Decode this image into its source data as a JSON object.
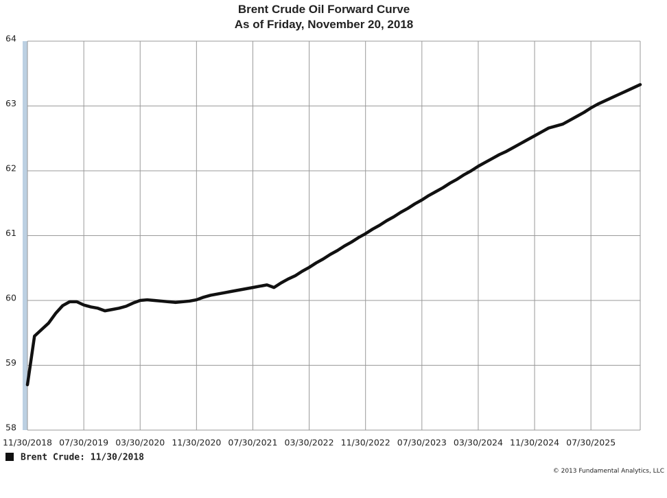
{
  "chart_data": {
    "type": "line",
    "title": "Brent Crude Oil Forward Curve",
    "subtitle": "As of Friday, November 20, 2018",
    "categories": [
      "11/30/2018",
      null,
      null,
      null,
      null,
      null,
      null,
      null,
      "07/30/2019",
      null,
      null,
      null,
      null,
      null,
      null,
      null,
      "03/30/2020",
      null,
      null,
      null,
      null,
      null,
      null,
      null,
      "11/30/2020",
      null,
      null,
      null,
      null,
      null,
      null,
      null,
      "07/30/2021",
      null,
      null,
      null,
      null,
      null,
      null,
      null,
      "03/30/2022",
      null,
      null,
      null,
      null,
      null,
      null,
      null,
      "11/30/2022",
      null,
      null,
      null,
      null,
      null,
      null,
      null,
      "07/30/2023",
      null,
      null,
      null,
      null,
      null,
      null,
      null,
      "03/30/2024",
      null,
      null,
      null,
      null,
      null,
      null,
      null,
      "11/30/2024",
      null,
      null,
      null,
      null,
      null,
      null,
      null,
      "07/30/2025",
      null,
      null,
      null,
      null,
      null,
      null,
      null
    ],
    "series": [
      {
        "name": "Brent Crude: 11/30/2018",
        "color": "#111111",
        "values": [
          58.7,
          59.45,
          59.55,
          59.65,
          59.8,
          59.92,
          59.98,
          59.98,
          59.93,
          59.9,
          59.88,
          59.84,
          59.86,
          59.88,
          59.91,
          59.96,
          60.0,
          60.01,
          60.0,
          59.99,
          59.98,
          59.97,
          59.98,
          59.99,
          60.01,
          60.05,
          60.08,
          60.1,
          60.12,
          60.14,
          60.16,
          60.18,
          60.2,
          60.22,
          60.24,
          60.2,
          60.27,
          60.33,
          60.38,
          60.45,
          60.51,
          60.58,
          60.64,
          60.71,
          60.77,
          60.84,
          60.9,
          60.97,
          61.03,
          61.1,
          61.16,
          61.23,
          61.29,
          61.36,
          61.42,
          61.49,
          61.55,
          61.62,
          61.68,
          61.74,
          61.81,
          61.87,
          61.94,
          62.0,
          62.07,
          62.13,
          62.19,
          62.25,
          62.3,
          62.36,
          62.42,
          62.48,
          62.54,
          62.6,
          62.66,
          62.69,
          62.72,
          62.78,
          62.84,
          62.9,
          62.97,
          63.03,
          63.08,
          63.13,
          63.18,
          63.23,
          63.28,
          63.33
        ]
      }
    ],
    "ylim": [
      58,
      64
    ],
    "yticks": [
      58,
      59,
      60,
      61,
      62,
      63,
      64
    ],
    "grid": true,
    "footer": "© 2013 Fundamental Analytics, LLC"
  }
}
